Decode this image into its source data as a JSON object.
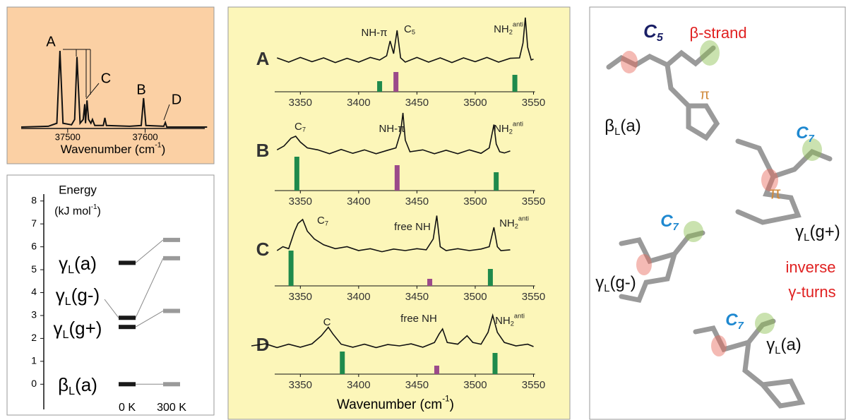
{
  "chart_data": [
    {
      "type": "line",
      "x_label": {
        "text": "Wavenumber (cm",
        "sup": "-1",
        "after": ")"
      },
      "x": [
        37440,
        37475,
        37486,
        37490,
        37494,
        37505,
        37509,
        37512,
        37516,
        37520,
        37522,
        37523,
        37525,
        37527,
        37530,
        37532,
        37535,
        37546,
        37548,
        37550,
        37580,
        37595,
        37598,
        37601,
        37624,
        37626,
        37628,
        37680
      ],
      "values": [
        0,
        0.01,
        0.05,
        1,
        0.05,
        0.03,
        0.1,
        0.92,
        0.05,
        0.1,
        0.3,
        0.05,
        0.35,
        0.1,
        0.05,
        0.1,
        0.02,
        0.02,
        0.12,
        0.02,
        0.01,
        0.02,
        0.38,
        0.02,
        0.01,
        0.06,
        0,
        0
      ],
      "xlim": [
        37440,
        37677
      ],
      "xticks": [
        37500,
        37600
      ],
      "color": "#111111",
      "peak_labels": [
        "A",
        "C",
        "B",
        "D"
      ]
    },
    {
      "type": "energy-level",
      "y_label": "Energy",
      "y_unit": {
        "text": "(kJ mol",
        "sup": "-1",
        "after": ")"
      },
      "categories": [
        "0 K",
        "300 K"
      ],
      "colors": [
        "#1a1a1a",
        "#9a9a9a"
      ],
      "ylim": [
        -1.1,
        8.3
      ],
      "yticks": [
        0,
        1,
        2,
        3,
        4,
        5,
        6,
        7,
        8
      ],
      "series": [
        {
          "name": {
            "text": "γ",
            "sub": "L",
            "after": "(a)"
          },
          "values": [
            5.3,
            6.3
          ]
        },
        {
          "name": {
            "text": "γ",
            "sub": "L",
            "after": "(g-)"
          },
          "values": [
            2.9,
            5.5
          ]
        },
        {
          "name": {
            "text": "γ",
            "sub": "L",
            "after": "(g+)"
          },
          "values": [
            2.5,
            3.2
          ]
        },
        {
          "name": {
            "text": "β",
            "sub": "L",
            "after": "(a)"
          },
          "values": [
            0,
            0
          ]
        }
      ]
    },
    {
      "type": "spectrum-stack",
      "x_label": {
        "text": "Wavenumber (cm",
        "sup": "-1",
        "after": ")"
      },
      "xlim": [
        3328,
        3560
      ],
      "xticks": [
        3350,
        3400,
        3450,
        3500,
        3550
      ],
      "color": "#111111",
      "panels": [
        {
          "label": "A",
          "x": [
            3330,
            3340,
            3350,
            3360,
            3370,
            3380,
            3390,
            3400,
            3410,
            3418,
            3424,
            3427,
            3430,
            3433,
            3436,
            3440,
            3450,
            3460,
            3470,
            3480,
            3490,
            3500,
            3510,
            3520,
            3530,
            3538,
            3541,
            3543,
            3545,
            3548,
            3550
          ],
          "values": [
            0.05,
            -0.05,
            0.06,
            -0.04,
            0.05,
            -0.06,
            0.04,
            -0.05,
            0.06,
            0,
            0.1,
            0.45,
            0.15,
            0.7,
            0.05,
            -0.05,
            0.06,
            -0.05,
            0.05,
            -0.06,
            0.05,
            -0.04,
            0.06,
            -0.05,
            0.04,
            0.05,
            0.4,
            1,
            0.3,
            0,
            0.02
          ],
          "sticks": {
            "x": [
              3418,
              3432,
              3534
            ],
            "values": [
              0.75,
              1.4,
              1.2
            ],
            "colors": [
              "#1f8a4c",
              "#9b4a8a",
              "#1f8a4c"
            ]
          },
          "annotations": [
            {
              "text": "NH-π"
            },
            {
              "text": "C",
              "sub": "5"
            },
            {
              "text": "NH",
              "sub": "2",
              "sup": "anti"
            }
          ]
        },
        {
          "label": "B",
          "x": [
            3330,
            3336,
            3342,
            3346,
            3350,
            3356,
            3365,
            3375,
            3385,
            3395,
            3405,
            3415,
            3425,
            3432,
            3436,
            3438,
            3440,
            3444,
            3455,
            3465,
            3475,
            3485,
            3495,
            3505,
            3512,
            3516,
            3518,
            3521,
            3525,
            3530
          ],
          "values": [
            0.05,
            0.15,
            0.35,
            0.4,
            0.25,
            0.1,
            0.05,
            -0.05,
            0.06,
            -0.04,
            0.05,
            -0.05,
            0.04,
            0.1,
            0.5,
            1,
            0.3,
            0,
            0.05,
            -0.05,
            0.04,
            -0.05,
            0.05,
            -0.04,
            0.1,
            0.7,
            0.2,
            0,
            -0.03,
            0.02
          ],
          "sticks": {
            "x": [
              3347,
              3433,
              3518
            ],
            "values": [
              2.4,
              1.8,
              1.3
            ],
            "colors": [
              "#1f8a4c",
              "#9b4a8a",
              "#1f8a4c"
            ]
          },
          "annotations": [
            {
              "text": "C",
              "sub": "7"
            },
            {
              "text": "NH-π"
            },
            {
              "text": "NH",
              "sub": "2",
              "sup": "anti"
            }
          ]
        },
        {
          "label": "C",
          "x": [
            3330,
            3335,
            3340,
            3345,
            3348,
            3352,
            3356,
            3362,
            3370,
            3380,
            3390,
            3400,
            3410,
            3420,
            3430,
            3440,
            3450,
            3458,
            3464,
            3467,
            3470,
            3475,
            3485,
            3495,
            3505,
            3512,
            3516,
            3519,
            3522,
            3530
          ],
          "values": [
            0,
            0.1,
            0.05,
            0.5,
            0.7,
            0.8,
            0.5,
            0.3,
            0.15,
            0.05,
            0.1,
            0,
            0.05,
            -0.03,
            0.04,
            0,
            0.05,
            0.02,
            0.3,
            0.9,
            0.1,
            0,
            0.05,
            0,
            0.04,
            0.1,
            0.6,
            0.1,
            0,
            0.02
          ],
          "sticks": {
            "x": [
              3342,
              3461,
              3513
            ],
            "values": [
              2.5,
              0.5,
              1.2
            ],
            "colors": [
              "#1f8a4c",
              "#9b4a8a",
              "#1f8a4c"
            ]
          },
          "annotations": [
            {
              "text": "C",
              "sub": "7"
            },
            {
              "text": "free NH"
            },
            {
              "text": "NH",
              "sub": "2",
              "sup": "anti"
            }
          ]
        },
        {
          "label": "D",
          "x": [
            3308,
            3320,
            3330,
            3340,
            3350,
            3360,
            3368,
            3374,
            3378,
            3385,
            3395,
            3405,
            3415,
            3425,
            3435,
            3445,
            3455,
            3465,
            3469,
            3472,
            3476,
            3485,
            3493,
            3498,
            3505,
            3511,
            3515,
            3519,
            3525,
            3535,
            3545,
            3550
          ],
          "values": [
            0,
            0.06,
            -0.05,
            0.05,
            -0.04,
            0.06,
            0.3,
            0.55,
            0.35,
            0.05,
            -0.04,
            0.05,
            -0.05,
            0.04,
            0,
            0.06,
            -0.04,
            0.1,
            0.35,
            0.5,
            0.1,
            0.05,
            0.3,
            0.1,
            0.05,
            0.4,
            0.9,
            0.4,
            0.1,
            0,
            0.05,
            -0.02
          ],
          "sticks": {
            "x": [
              3386,
              3467,
              3517
            ],
            "values": [
              1.6,
              0.6,
              1.5
            ],
            "colors": [
              "#1f8a4c",
              "#9b4a8a",
              "#1f8a4c"
            ]
          },
          "annotations": [
            {
              "text": "C"
            },
            {
              "text": "free NH"
            },
            {
              "text": "NH",
              "sub": "2",
              "sup": "anti"
            }
          ]
        }
      ]
    }
  ],
  "structures": {
    "labels": [
      {
        "text": "C",
        "sub": "5"
      },
      "β-strand",
      {
        "text": "β",
        "sub": "L",
        "after": "(a)"
      },
      "π",
      {
        "text": "C",
        "sub": "7"
      },
      "π",
      {
        "text": "γ",
        "sub": "L",
        "after": "(g+)"
      },
      {
        "text": "C",
        "sub": "7"
      },
      {
        "text": "γ",
        "sub": "L",
        "after": "(g-)"
      },
      "inverse",
      "γ-turns",
      {
        "text": "C",
        "sub": "7"
      },
      {
        "text": "γ",
        "sub": "L",
        "after": "(a)"
      }
    ]
  }
}
